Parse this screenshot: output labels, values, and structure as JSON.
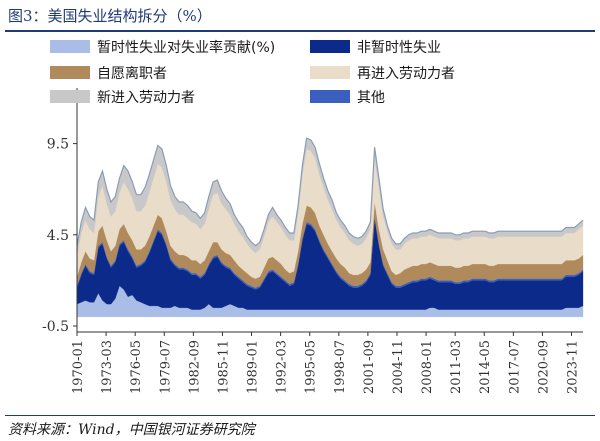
{
  "title": "图3：美国失业结构拆分（%）",
  "source": "资料来源：Wind，中国银河证券研究院",
  "chart_data": {
    "type": "area",
    "stacked": true,
    "y_ticks": [
      "9.5",
      "4.5",
      "-0.5"
    ],
    "ylim": [
      -0.5,
      12
    ],
    "x_ticks": [
      "1970-01",
      "1973-03",
      "1976-05",
      "1979-07",
      "1982-09",
      "1985-11",
      "1989-01",
      "1992-03",
      "1995-05",
      "1998-07",
      "2001-09",
      "2004-11",
      "2008-01",
      "2011-03",
      "2014-05",
      "2017-07",
      "2020-09",
      "2023-11"
    ],
    "x_range": [
      "1970-01",
      "2025-02"
    ],
    "legend_position": "top",
    "series": [
      {
        "name": "暂时性失业对失业率贡献(%)",
        "color": "#a9bde6",
        "values": [
          0.7,
          0.8,
          0.9,
          0.8,
          0.8,
          1.3,
          0.9,
          0.7,
          0.7,
          1.0,
          1.7,
          1.5,
          1.1,
          1.2,
          0.9,
          0.8,
          0.7,
          0.6,
          0.6,
          0.6,
          0.5,
          0.5,
          0.5,
          0.6,
          0.5,
          0.5,
          0.5,
          0.4,
          0.4,
          0.4,
          0.5,
          0.7,
          0.5,
          0.5,
          0.5,
          0.6,
          0.7,
          0.6,
          0.5,
          0.5,
          0.4,
          0.4,
          0.4,
          0.4,
          0.4,
          0.4,
          0.4,
          0.4,
          0.4,
          0.4,
          0.4,
          0.4,
          0.4,
          0.4,
          0.4,
          0.4,
          0.4,
          0.4,
          0.4,
          0.4,
          0.4,
          0.4,
          0.4,
          0.4,
          0.4,
          0.4,
          0.4,
          0.4,
          0.4,
          0.4,
          0.4,
          0.4,
          0.4,
          0.4,
          0.4,
          0.4,
          0.4,
          0.4,
          0.4,
          0.4,
          0.4,
          0.4,
          0.4,
          0.5,
          0.5,
          0.4,
          0.4,
          0.4,
          0.4,
          0.4,
          0.4,
          0.4,
          0.4,
          0.4,
          0.4,
          0.4,
          0.4,
          0.4,
          0.4,
          0.4,
          0.4,
          0.4,
          0.4,
          0.4,
          0.4,
          0.4,
          0.4,
          0.4,
          0.4,
          0.4,
          0.4,
          0.4,
          0.4,
          0.4,
          0.4,
          0.5,
          0.5,
          0.5,
          0.5,
          0.6
        ]
      },
      {
        "name": "非暂时性失业",
        "color": "#0c2a8a",
        "values": [
          0.9,
          1.5,
          1.9,
          1.6,
          1.5,
          2.5,
          3.1,
          2.5,
          2.0,
          2.0,
          2.2,
          2.6,
          2.5,
          2.0,
          1.8,
          2.0,
          2.3,
          2.9,
          3.5,
          4.1,
          4.0,
          3.4,
          2.6,
          2.2,
          2.1,
          2.1,
          2.0,
          1.9,
          1.9,
          1.7,
          1.8,
          2.1,
          2.7,
          2.8,
          2.4,
          2.1,
          1.9,
          1.7,
          1.6,
          1.4,
          1.3,
          1.2,
          1.1,
          1.2,
          1.6,
          2.0,
          2.1,
          1.9,
          1.7,
          1.5,
          1.3,
          1.4,
          2.4,
          3.8,
          4.7,
          4.6,
          4.3,
          3.7,
          3.2,
          2.8,
          2.4,
          2.0,
          1.7,
          1.5,
          1.3,
          1.2,
          1.2,
          1.3,
          1.5,
          1.9,
          5.0,
          3.5,
          2.4,
          1.9,
          1.4,
          1.2,
          1.2,
          1.3,
          1.4,
          1.5,
          1.5,
          1.6,
          1.6,
          1.6,
          1.5,
          1.5,
          1.5,
          1.5,
          1.5,
          1.4,
          1.4,
          1.5,
          1.5,
          1.6,
          1.6,
          1.6,
          1.6,
          1.5,
          1.5,
          1.6,
          1.6,
          1.6,
          1.6,
          1.6,
          1.6,
          1.6,
          1.6,
          1.6,
          1.6,
          1.6,
          1.6,
          1.6,
          1.6,
          1.6,
          1.6,
          1.7,
          1.7,
          1.7,
          1.8,
          1.9
        ]
      },
      {
        "name": "其他",
        "color": "#3a5fbf",
        "values": [
          0.1,
          0.1,
          0.1,
          0.1,
          0.1,
          0.1,
          0.1,
          0.1,
          0.1,
          0.1,
          0.1,
          0.1,
          0.1,
          0.1,
          0.1,
          0.1,
          0.1,
          0.1,
          0.1,
          0.1,
          0.1,
          0.1,
          0.1,
          0.1,
          0.1,
          0.1,
          0.1,
          0.1,
          0.1,
          0.1,
          0.1,
          0.1,
          0.1,
          0.1,
          0.1,
          0.1,
          0.1,
          0.1,
          0.1,
          0.1,
          0.1,
          0.1,
          0.1,
          0.1,
          0.1,
          0.1,
          0.1,
          0.1,
          0.1,
          0.1,
          0.1,
          0.1,
          0.1,
          0.1,
          0.1,
          0.1,
          0.1,
          0.1,
          0.1,
          0.1,
          0.1,
          0.1,
          0.1,
          0.1,
          0.1,
          0.1,
          0.1,
          0.1,
          0.1,
          0.1,
          0.1,
          0.1,
          0.1,
          0.1,
          0.1,
          0.1,
          0.1,
          0.1,
          0.1,
          0.1,
          0.1,
          0.1,
          0.1,
          0.1,
          0.1,
          0.1,
          0.1,
          0.1,
          0.1,
          0.1,
          0.1,
          0.1,
          0.1,
          0.1,
          0.1,
          0.1,
          0.1,
          0.1,
          0.1,
          0.1,
          0.1,
          0.1,
          0.1,
          0.1,
          0.1,
          0.1,
          0.1,
          0.1,
          0.1,
          0.1,
          0.1,
          0.1,
          0.1,
          0.1,
          0.1,
          0.1,
          0.1,
          0.1,
          0.1,
          0.1
        ]
      },
      {
        "name": "自愿离职者",
        "color": "#b08a5a",
        "values": [
          0.5,
          0.6,
          0.7,
          0.7,
          0.7,
          0.8,
          0.9,
          0.9,
          0.8,
          0.8,
          0.8,
          0.9,
          0.9,
          0.9,
          0.9,
          0.8,
          0.8,
          0.8,
          0.8,
          0.8,
          0.8,
          0.7,
          0.7,
          0.7,
          0.7,
          0.7,
          0.7,
          0.7,
          0.7,
          0.7,
          0.7,
          0.7,
          0.8,
          0.7,
          0.7,
          0.7,
          0.7,
          0.7,
          0.6,
          0.6,
          0.6,
          0.5,
          0.5,
          0.5,
          0.6,
          0.7,
          0.7,
          0.7,
          0.7,
          0.6,
          0.6,
          0.6,
          0.7,
          0.8,
          0.9,
          0.9,
          0.9,
          0.8,
          0.8,
          0.7,
          0.7,
          0.7,
          0.7,
          0.7,
          0.6,
          0.6,
          0.6,
          0.6,
          0.6,
          0.6,
          0.8,
          0.8,
          0.8,
          0.7,
          0.6,
          0.6,
          0.7,
          0.8,
          0.8,
          0.8,
          0.8,
          0.8,
          0.8,
          0.8,
          0.8,
          0.8,
          0.8,
          0.8,
          0.8,
          0.8,
          0.8,
          0.8,
          0.8,
          0.8,
          0.8,
          0.8,
          0.8,
          0.8,
          0.8,
          0.8,
          0.8,
          0.8,
          0.8,
          0.8,
          0.8,
          0.8,
          0.8,
          0.8,
          0.8,
          0.8,
          0.8,
          0.8,
          0.8,
          0.8,
          0.8,
          0.8,
          0.8,
          0.8,
          0.8,
          0.8
        ]
      },
      {
        "name": "再进入劳动力者",
        "color": "#e9dcc8",
        "values": [
          1.2,
          1.6,
          1.7,
          1.6,
          1.5,
          1.9,
          2.2,
          2.0,
          1.9,
          1.9,
          2.0,
          2.3,
          2.4,
          2.3,
          2.1,
          2.1,
          2.2,
          2.4,
          2.6,
          2.8,
          2.8,
          2.7,
          2.5,
          2.3,
          2.2,
          2.2,
          2.1,
          2.1,
          2.0,
          1.9,
          2.0,
          2.3,
          2.6,
          2.7,
          2.5,
          2.4,
          2.2,
          2.0,
          1.9,
          1.8,
          1.6,
          1.5,
          1.4,
          1.5,
          1.7,
          2.0,
          2.2,
          2.1,
          2.0,
          1.9,
          1.8,
          1.7,
          2.1,
          2.7,
          3.1,
          3.1,
          3.0,
          2.8,
          2.6,
          2.4,
          2.3,
          2.1,
          2.0,
          1.9,
          1.8,
          1.7,
          1.6,
          1.6,
          1.7,
          1.8,
          2.4,
          2.3,
          1.8,
          1.6,
          1.5,
          1.4,
          1.3,
          1.4,
          1.5,
          1.5,
          1.5,
          1.5,
          1.5,
          1.5,
          1.5,
          1.5,
          1.5,
          1.5,
          1.5,
          1.5,
          1.5,
          1.5,
          1.5,
          1.5,
          1.5,
          1.5,
          1.5,
          1.5,
          1.5,
          1.5,
          1.5,
          1.5,
          1.5,
          1.5,
          1.5,
          1.5,
          1.5,
          1.5,
          1.5,
          1.5,
          1.5,
          1.5,
          1.5,
          1.5,
          1.5,
          1.5,
          1.5,
          1.5,
          1.6,
          1.6
        ]
      },
      {
        "name": "新进入劳动力者",
        "color": "#c8c8c8",
        "values": [
          0.5,
          0.6,
          0.7,
          0.7,
          0.7,
          0.8,
          0.8,
          0.8,
          0.8,
          0.8,
          0.8,
          0.9,
          1.0,
          0.9,
          0.9,
          0.9,
          1.0,
          1.0,
          1.0,
          1.0,
          1.0,
          0.9,
          0.8,
          0.7,
          0.7,
          0.7,
          0.7,
          0.6,
          0.6,
          0.6,
          0.6,
          0.7,
          0.7,
          0.7,
          0.7,
          0.6,
          0.6,
          0.5,
          0.5,
          0.5,
          0.4,
          0.4,
          0.4,
          0.4,
          0.4,
          0.4,
          0.5,
          0.4,
          0.4,
          0.4,
          0.4,
          0.4,
          0.4,
          0.5,
          0.6,
          0.6,
          0.6,
          0.6,
          0.5,
          0.5,
          0.5,
          0.4,
          0.4,
          0.4,
          0.4,
          0.4,
          0.4,
          0.4,
          0.4,
          0.4,
          0.6,
          0.5,
          0.4,
          0.3,
          0.3,
          0.3,
          0.3,
          0.3,
          0.3,
          0.3,
          0.3,
          0.3,
          0.3,
          0.3,
          0.3,
          0.3,
          0.3,
          0.3,
          0.3,
          0.3,
          0.3,
          0.3,
          0.3,
          0.3,
          0.3,
          0.3,
          0.3,
          0.3,
          0.3,
          0.3,
          0.3,
          0.3,
          0.3,
          0.3,
          0.3,
          0.3,
          0.3,
          0.3,
          0.3,
          0.3,
          0.3,
          0.3,
          0.3,
          0.3,
          0.3,
          0.3,
          0.3,
          0.3,
          0.3,
          0.3
        ]
      }
    ],
    "legend_order": [
      "暂时性失业对失业率贡献(%)",
      "非暂时性失业",
      "自愿离职者",
      "再进入劳动力者",
      "新进入劳动力者",
      "其他"
    ]
  }
}
